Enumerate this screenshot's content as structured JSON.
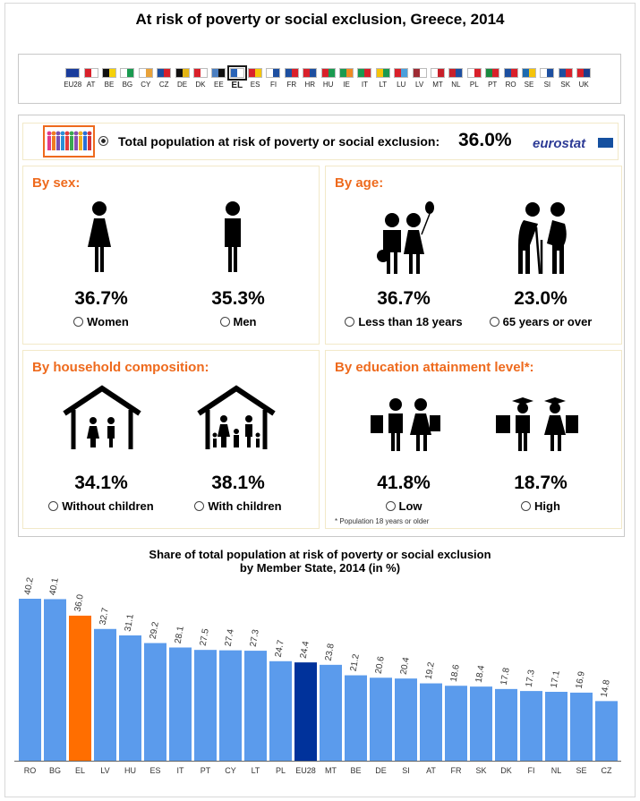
{
  "page": {
    "title": "At risk of poverty or social exclusion, Greece, 2014"
  },
  "flags": [
    {
      "code": "EU28",
      "c": [
        "#1a3c9c",
        "#1a3c9c"
      ],
      "selected": false
    },
    {
      "code": "AT",
      "c": [
        "#d9202a",
        "#ffffff"
      ],
      "selected": false
    },
    {
      "code": "BE",
      "c": [
        "#111111",
        "#f5d10a"
      ],
      "selected": false
    },
    {
      "code": "BG",
      "c": [
        "#ffffff",
        "#1a9a50"
      ],
      "selected": false
    },
    {
      "code": "CY",
      "c": [
        "#ffffff",
        "#e8a23a"
      ],
      "selected": false
    },
    {
      "code": "CZ",
      "c": [
        "#1d4fa0",
        "#d9202a"
      ],
      "selected": false
    },
    {
      "code": "DE",
      "c": [
        "#111111",
        "#e3b414"
      ],
      "selected": false
    },
    {
      "code": "DK",
      "c": [
        "#d9202a",
        "#ffffff"
      ],
      "selected": false
    },
    {
      "code": "EE",
      "c": [
        "#4a7ec0",
        "#111111"
      ],
      "selected": false
    },
    {
      "code": "EL",
      "c": [
        "#2a64b8",
        "#ffffff"
      ],
      "selected": true
    },
    {
      "code": "ES",
      "c": [
        "#d9202a",
        "#f5c40a"
      ],
      "selected": false
    },
    {
      "code": "FI",
      "c": [
        "#ffffff",
        "#1d4fa0"
      ],
      "selected": false
    },
    {
      "code": "FR",
      "c": [
        "#1d4fa0",
        "#d9202a"
      ],
      "selected": false
    },
    {
      "code": "HR",
      "c": [
        "#d9202a",
        "#1d4fa0"
      ],
      "selected": false
    },
    {
      "code": "HU",
      "c": [
        "#d9202a",
        "#1a9a50"
      ],
      "selected": false
    },
    {
      "code": "IE",
      "c": [
        "#1a9a50",
        "#f08a24"
      ],
      "selected": false
    },
    {
      "code": "IT",
      "c": [
        "#1a9a50",
        "#d9202a"
      ],
      "selected": false
    },
    {
      "code": "LT",
      "c": [
        "#f5c40a",
        "#1a9a50"
      ],
      "selected": false
    },
    {
      "code": "LU",
      "c": [
        "#d9202a",
        "#4aa0dc"
      ],
      "selected": false
    },
    {
      "code": "LV",
      "c": [
        "#9e2b34",
        "#ffffff"
      ],
      "selected": false
    },
    {
      "code": "MT",
      "c": [
        "#ffffff",
        "#c8202a"
      ],
      "selected": false
    },
    {
      "code": "NL",
      "c": [
        "#c8202a",
        "#1d4fa0"
      ],
      "selected": false
    },
    {
      "code": "PL",
      "c": [
        "#ffffff",
        "#d9202a"
      ],
      "selected": false
    },
    {
      "code": "PT",
      "c": [
        "#1a8a40",
        "#d9202a"
      ],
      "selected": false
    },
    {
      "code": "RO",
      "c": [
        "#1d4fa0",
        "#d9202a"
      ],
      "selected": false
    },
    {
      "code": "SE",
      "c": [
        "#1d6ab0",
        "#f5c40a"
      ],
      "selected": false
    },
    {
      "code": "SI",
      "c": [
        "#ffffff",
        "#1d4fa0"
      ],
      "selected": false
    },
    {
      "code": "SK",
      "c": [
        "#1d4fa0",
        "#d9202a"
      ],
      "selected": false
    },
    {
      "code": "UK",
      "c": [
        "#d9202a",
        "#1d3c8c"
      ],
      "selected": false
    }
  ],
  "total": {
    "label": "Total population at risk of poverty or social exclusion:",
    "value": "36.0%",
    "logo": "eurostat"
  },
  "panels": {
    "sex": {
      "title": "By sex:",
      "a": {
        "value": "36.7%",
        "label": "Women"
      },
      "b": {
        "value": "35.3%",
        "label": "Men"
      }
    },
    "age": {
      "title": "By age:",
      "a": {
        "value": "36.7%",
        "label": "Less than 18 years"
      },
      "b": {
        "value": "23.0%",
        "label": "65 years or over"
      }
    },
    "household": {
      "title": "By household composition:",
      "a": {
        "value": "34.1%",
        "label": "Without children"
      },
      "b": {
        "value": "38.1%",
        "label": "With children"
      }
    },
    "education": {
      "title": "By education attainment level*:",
      "a": {
        "value": "41.8%",
        "label": "Low"
      },
      "b": {
        "value": "18.7%",
        "label": "High"
      },
      "note": "* Population 18 years or older"
    }
  },
  "colors": {
    "bar": "#5b9bec",
    "highlight": "#ff6e00",
    "eu": "#00329b",
    "accent": "#ee6a1d"
  },
  "chart_data": {
    "type": "bar",
    "title": "Share of total population at risk of poverty or social exclusion",
    "subtitle": "by Member State, 2014 (in %)",
    "categories": [
      "RO",
      "BG",
      "EL",
      "LV",
      "HU",
      "ES",
      "IT",
      "PT",
      "CY",
      "LT",
      "PL",
      "EU28",
      "MT",
      "BE",
      "DE",
      "SI",
      "AT",
      "FR",
      "SK",
      "DK",
      "FI",
      "NL",
      "SE",
      "CZ"
    ],
    "values": [
      40.2,
      40.1,
      36.0,
      32.7,
      31.1,
      29.2,
      28.1,
      27.5,
      27.4,
      27.3,
      24.7,
      24.4,
      23.8,
      21.2,
      20.6,
      20.4,
      19.2,
      18.6,
      18.4,
      17.8,
      17.3,
      17.1,
      16.9,
      14.8
    ],
    "highlight": "EL",
    "reference": "EU28",
    "ylim": [
      0,
      40.2
    ]
  }
}
